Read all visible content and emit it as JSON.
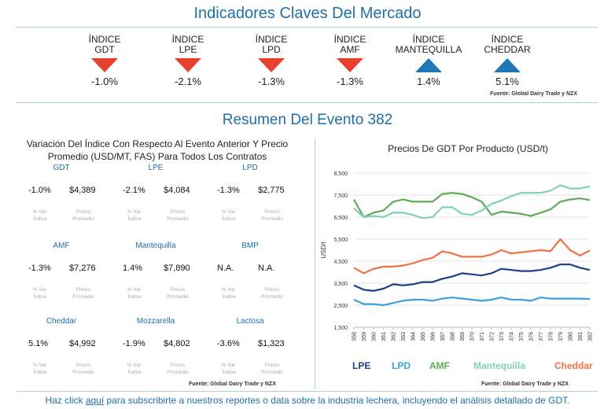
{
  "header": {
    "title": "Indicadores Claves Del Mercado",
    "source": "Fuente: Global Dairy Trade y NZX",
    "indicators": [
      {
        "line1": "ÍNDICE",
        "line2": "GDT",
        "direction": "down",
        "value": "-1.0%"
      },
      {
        "line1": "ÍNDICE",
        "line2": "LPE",
        "direction": "down",
        "value": "-2.1%"
      },
      {
        "line1": "ÍNDICE",
        "line2": "LPD",
        "direction": "down",
        "value": "-1.3%"
      },
      {
        "line1": "ÍNDICE",
        "line2": "AMF",
        "direction": "down",
        "value": "-1.3%"
      },
      {
        "line1": "ÍNDICE",
        "line2": "MANTEQUILLA",
        "direction": "up",
        "value": "1.4%"
      },
      {
        "line1": "ÍNDICE",
        "line2": "CHEDDAR",
        "direction": "up",
        "value": "5.1%"
      }
    ]
  },
  "summary": {
    "title": "Resumen Del Evento 382",
    "left_title_line1": "Variación Del Índice Con Respecto Al Evento Anterior Y Precio",
    "left_title_line2": "Promedio (USD/MT, FAS) Para Todos Los Contratos",
    "sub_pct_1": "% Var.",
    "sub_pct_2": "Índice",
    "sub_price_1": "Precio",
    "sub_price_2": "Promedio",
    "source": "Fuente:  Global Dairy Trade y NZX",
    "products": [
      {
        "name": "GDT",
        "pct": "-1.0%",
        "price": "$4,389"
      },
      {
        "name": "LPE",
        "pct": "-2.1%",
        "price": "$4,084"
      },
      {
        "name": "LPD",
        "pct": "-1.3%",
        "price": "$2,775"
      },
      {
        "name": "AMF",
        "pct": "-1.3%",
        "price": "$7,276"
      },
      {
        "name": "Mantequilla",
        "pct": "1.4%",
        "price": "$7,890"
      },
      {
        "name": "BMP",
        "pct": "N.A.",
        "price": "N.A."
      },
      {
        "name": "Cheddar",
        "pct": "5.1%",
        "price": "$4,992"
      },
      {
        "name": "Mozzarella",
        "pct": "-1.9%",
        "price": "$4,802"
      },
      {
        "name": "Lactosa",
        "pct": "-3.6%",
        "price": "$1,323"
      }
    ]
  },
  "chart_data": {
    "type": "line",
    "title": "Precios De GDT Por Producto (USD/t)",
    "ylabel": "USD/t",
    "xlabel": "",
    "ylim": [
      1500,
      8500
    ],
    "yticks": [
      "8,500",
      "7,500",
      "6,500",
      "5,500",
      "4,500",
      "3,500",
      "2,500",
      "1,500"
    ],
    "ytick_values": [
      8500,
      7500,
      6500,
      5500,
      4500,
      3500,
      2500,
      1500
    ],
    "categories": [
      "358",
      "359",
      "360",
      "361",
      "362",
      "363",
      "364",
      "365",
      "366",
      "367",
      "368",
      "369",
      "370",
      "371",
      "372",
      "373",
      "374",
      "375",
      "376",
      "377",
      "378",
      "379",
      "380",
      "381",
      "382"
    ],
    "series": [
      {
        "name": "LPE",
        "color": "#1b3f8b",
        "values": [
          3400,
          3200,
          3150,
          3250,
          3450,
          3400,
          3450,
          3550,
          3550,
          3700,
          3800,
          3950,
          3900,
          3850,
          3950,
          4150,
          4100,
          4050,
          4050,
          4100,
          4200,
          4350,
          4350,
          4200,
          4100
        ]
      },
      {
        "name": "LPD",
        "color": "#3fa0db",
        "values": [
          2750,
          2550,
          2550,
          2500,
          2600,
          2700,
          2750,
          2750,
          2700,
          2800,
          2850,
          2800,
          2750,
          2700,
          2750,
          2850,
          2750,
          2750,
          2700,
          2850,
          2800,
          2800,
          2800,
          2800,
          2780
        ]
      },
      {
        "name": "AMF",
        "color": "#5cab57",
        "values": [
          7300,
          6500,
          6700,
          6800,
          7200,
          7300,
          7200,
          7200,
          7200,
          7550,
          7600,
          7550,
          7400,
          7200,
          6600,
          6750,
          6700,
          6650,
          6550,
          6700,
          6850,
          7200,
          7300,
          7350,
          7270
        ]
      },
      {
        "name": "Mantequilla",
        "color": "#7fd1b9",
        "values": [
          6900,
          6500,
          6550,
          6500,
          6700,
          6700,
          6600,
          6450,
          6500,
          6950,
          6950,
          6650,
          6600,
          6800,
          7100,
          7250,
          7450,
          7600,
          7600,
          7600,
          7700,
          7950,
          7800,
          7800,
          7890
        ]
      },
      {
        "name": "Cheddar",
        "color": "#f07143",
        "values": [
          4200,
          3950,
          4150,
          4250,
          4250,
          4300,
          4400,
          4550,
          4650,
          4950,
          4850,
          4700,
          4700,
          4700,
          4800,
          5000,
          4850,
          4900,
          4950,
          5000,
          4950,
          5500,
          5000,
          4750,
          4990
        ]
      }
    ],
    "source": "Fuente:  Global Dairy Trade y NZX"
  },
  "footer": {
    "prefix": "Haz click ",
    "link": "aquí",
    "suffix": " para subscribirte a nuestros reportes o data sobre la industria lechera, incluyendo el análisis detallado de GDT."
  }
}
